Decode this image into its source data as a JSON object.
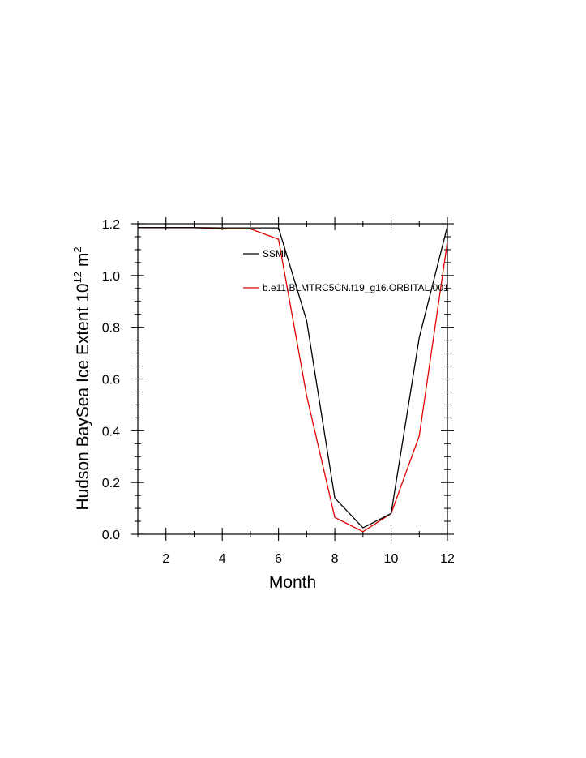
{
  "chart_data": {
    "type": "line",
    "title": "",
    "xlabel": "Month",
    "ylabel_parts": {
      "main": "Hudson BaySea Ice Extent 10",
      "sup1": "12",
      "unit": " m",
      "sup2": "2"
    },
    "xlim": [
      1,
      12
    ],
    "ylim": [
      0.0,
      1.2
    ],
    "xticks": [
      2,
      4,
      6,
      8,
      10,
      12
    ],
    "xtick_labels": [
      "2",
      "4",
      "6",
      "8",
      "10",
      "12"
    ],
    "yticks": [
      0.0,
      0.2,
      0.4,
      0.6,
      0.8,
      1.0,
      1.2
    ],
    "ytick_labels": [
      "0.0",
      "0.2",
      "0.4",
      "0.6",
      "0.8",
      "1.0",
      "1.2"
    ],
    "grid": false,
    "legend_position": "inside-top-center",
    "x": [
      1,
      2,
      3,
      4,
      5,
      6,
      7,
      8,
      9,
      10,
      11,
      12
    ],
    "series": [
      {
        "name": "SSMI",
        "color": "#000000",
        "values": [
          1.185,
          1.185,
          1.185,
          1.184,
          1.184,
          1.184,
          0.825,
          0.14,
          0.025,
          0.08,
          0.76,
          1.19
        ]
      },
      {
        "name": "b.e11.BLMTRC5CN.f19_g16.ORBITAL.001",
        "color": "#e00000",
        "values": [
          1.185,
          1.185,
          1.185,
          1.18,
          1.18,
          1.14,
          0.535,
          0.065,
          0.01,
          0.08,
          0.38,
          1.13
        ]
      }
    ]
  }
}
